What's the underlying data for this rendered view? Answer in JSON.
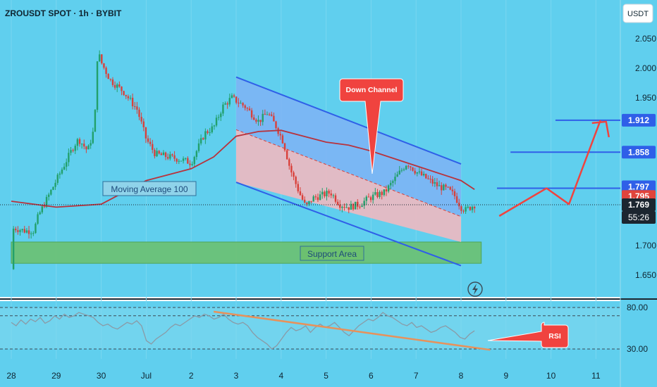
{
  "header": {
    "title": "ZROUSDT SPOT · 1h · BYBIT"
  },
  "currency_badge": "USDT",
  "price_axis": {
    "ticks": [
      "2.050",
      "2.000",
      "1.950",
      "1.700",
      "1.650"
    ],
    "badges": [
      {
        "label": "1.912",
        "kind": "level"
      },
      {
        "label": "1.858",
        "kind": "level"
      },
      {
        "label": "1.797",
        "kind": "level"
      },
      {
        "label": "1.795",
        "kind": "ma"
      },
      {
        "label": "1.769",
        "kind": "last"
      }
    ],
    "countdown": "55:26"
  },
  "time_axis": {
    "labels": [
      "28",
      "29",
      "30",
      "Jul",
      "2",
      "3",
      "4",
      "5",
      "6",
      "7",
      "8",
      "9",
      "10",
      "11"
    ]
  },
  "rsi_axis": {
    "ticks": [
      "80.00",
      "30.00"
    ]
  },
  "annotations": {
    "down_channel": "Down Channel",
    "moving_average": "Moving Average 100",
    "support_area": "Support Area",
    "rsi": "RSI"
  },
  "colors": {
    "background": "#60cfee",
    "channel_line": "#2f5fe8",
    "channel_upper_fill": "#7fb3f5",
    "channel_lower_fill": "#f0b8c0",
    "support_fill": "#6cc070",
    "ma_line": "#b8323c",
    "bull_candle": "#22a06b",
    "bear_candle": "#d9403a",
    "arrow": "#f0433f",
    "level_line": "#2f5fe8",
    "rsi_line": "#8a9aa6",
    "rsi_trend": "#e8915a"
  },
  "chart_data": {
    "type": "candlestick",
    "symbol": "ZROUSDT",
    "timeframe": "1h",
    "exchange": "BYBIT",
    "ylim": [
      1.615,
      2.085
    ],
    "x_ticks": [
      "28",
      "29",
      "30",
      "Jul",
      "2",
      "3",
      "4",
      "5",
      "6",
      "7",
      "8",
      "9",
      "10",
      "11"
    ],
    "price_path": [
      [
        0,
        1.66
      ],
      [
        0.05,
        1.73
      ],
      [
        0.3,
        1.725
      ],
      [
        0.5,
        1.725
      ],
      [
        0.6,
        1.75
      ],
      [
        0.8,
        1.78
      ],
      [
        1.0,
        1.81
      ],
      [
        1.2,
        1.84
      ],
      [
        1.4,
        1.87
      ],
      [
        1.5,
        1.88
      ],
      [
        1.7,
        1.86
      ],
      [
        1.85,
        1.9
      ],
      [
        1.92,
        2.03
      ],
      [
        2.0,
        2.01
      ],
      [
        2.2,
        1.98
      ],
      [
        2.5,
        1.96
      ],
      [
        2.8,
        1.93
      ],
      [
        3.0,
        1.88
      ],
      [
        3.2,
        1.855
      ],
      [
        3.5,
        1.85
      ],
      [
        3.8,
        1.845
      ],
      [
        4.0,
        1.84
      ],
      [
        4.3,
        1.89
      ],
      [
        4.5,
        1.9
      ],
      [
        4.7,
        1.935
      ],
      [
        4.9,
        1.95
      ],
      [
        5.2,
        1.935
      ],
      [
        5.5,
        1.91
      ],
      [
        5.7,
        1.925
      ],
      [
        5.9,
        1.9
      ],
      [
        6.05,
        1.875
      ],
      [
        6.2,
        1.83
      ],
      [
        6.4,
        1.79
      ],
      [
        6.55,
        1.765
      ],
      [
        6.7,
        1.78
      ],
      [
        6.9,
        1.785
      ],
      [
        7.1,
        1.79
      ],
      [
        7.3,
        1.77
      ],
      [
        7.5,
        1.765
      ],
      [
        7.75,
        1.77
      ],
      [
        7.95,
        1.78
      ],
      [
        8.1,
        1.785
      ],
      [
        8.3,
        1.79
      ],
      [
        8.55,
        1.815
      ],
      [
        8.8,
        1.84
      ],
      [
        9.0,
        1.825
      ],
      [
        9.3,
        1.81
      ],
      [
        9.5,
        1.8
      ],
      [
        9.7,
        1.795
      ],
      [
        9.85,
        1.785
      ],
      [
        10.0,
        1.765
      ],
      [
        10.1,
        1.76
      ],
      [
        10.3,
        1.769
      ]
    ],
    "moving_average_100": [
      [
        0,
        1.775
      ],
      [
        1.0,
        1.765
      ],
      [
        2.0,
        1.77
      ],
      [
        3.0,
        1.81
      ],
      [
        4.0,
        1.83
      ],
      [
        4.5,
        1.85
      ],
      [
        5.0,
        1.885
      ],
      [
        5.5,
        1.893
      ],
      [
        6.0,
        1.895
      ],
      [
        6.5,
        1.885
      ],
      [
        7.0,
        1.875
      ],
      [
        7.5,
        1.87
      ],
      [
        8.0,
        1.86
      ],
      [
        9.0,
        1.835
      ],
      [
        10.0,
        1.81
      ],
      [
        10.3,
        1.795
      ]
    ],
    "down_channel": {
      "upper": [
        [
          5.0,
          1.985
        ],
        [
          10.0,
          1.838
        ]
      ],
      "lower": [
        [
          5.0,
          1.807
        ],
        [
          10.0,
          1.666
        ]
      ]
    },
    "support_area": {
      "from": 1.67,
      "to": 1.706,
      "x_start": 0,
      "x_end": 10.45
    },
    "horizontal_levels": [
      1.912,
      1.858,
      1.797
    ],
    "last_price": 1.769,
    "projected_path": [
      [
        10.85,
        1.75
      ],
      [
        11.9,
        1.797
      ],
      [
        12.4,
        1.77
      ],
      [
        13.1,
        1.912
      ]
    ],
    "rsi": {
      "ylim": [
        15,
        95
      ],
      "levels": [
        80,
        70,
        30
      ],
      "values": [
        62,
        58,
        65,
        60,
        66,
        63,
        68,
        61,
        64,
        70,
        66,
        72,
        68,
        70,
        74,
        72,
        70,
        68,
        62,
        58,
        60,
        56,
        54,
        58,
        62,
        60,
        64,
        58,
        40,
        36,
        42,
        46,
        50,
        56,
        60,
        58,
        62,
        66,
        70,
        68,
        72,
        70,
        66,
        68,
        72,
        66,
        62,
        60,
        62,
        58,
        50,
        44,
        40,
        36,
        30,
        34,
        42,
        50,
        56,
        52,
        54,
        58,
        50,
        56,
        60,
        56,
        58,
        62,
        56,
        50,
        46,
        52,
        58,
        62,
        66,
        64,
        68,
        74,
        70,
        68,
        64,
        60,
        58,
        62,
        56,
        58,
        54,
        50,
        52,
        56,
        58,
        54,
        50,
        44,
        42,
        48,
        52
      ],
      "trend": [
        [
          4.5,
          75
        ],
        [
          10.65,
          29
        ]
      ]
    }
  }
}
